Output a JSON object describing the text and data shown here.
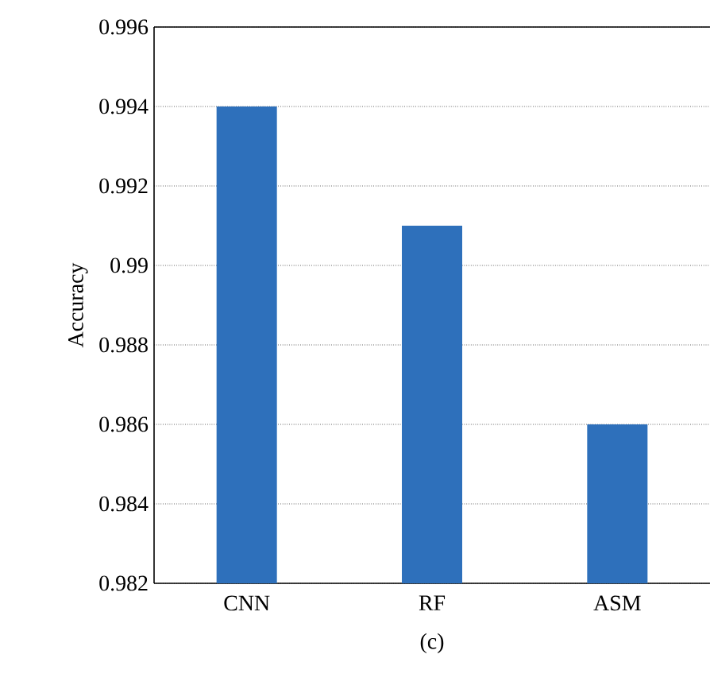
{
  "chart_data": {
    "type": "bar",
    "ylabel": "Accuracy",
    "categories": [
      "CNN",
      "RF",
      "ASM"
    ],
    "values": [
      0.994,
      0.991,
      0.986
    ],
    "color": "#2e70bb",
    "ylim": [
      0.982,
      0.996
    ],
    "yticks": [
      0.982,
      0.984,
      0.986,
      0.988,
      0.99,
      0.992,
      0.994,
      0.996
    ],
    "grid": "y",
    "annotations": [
      "(c)"
    ]
  }
}
